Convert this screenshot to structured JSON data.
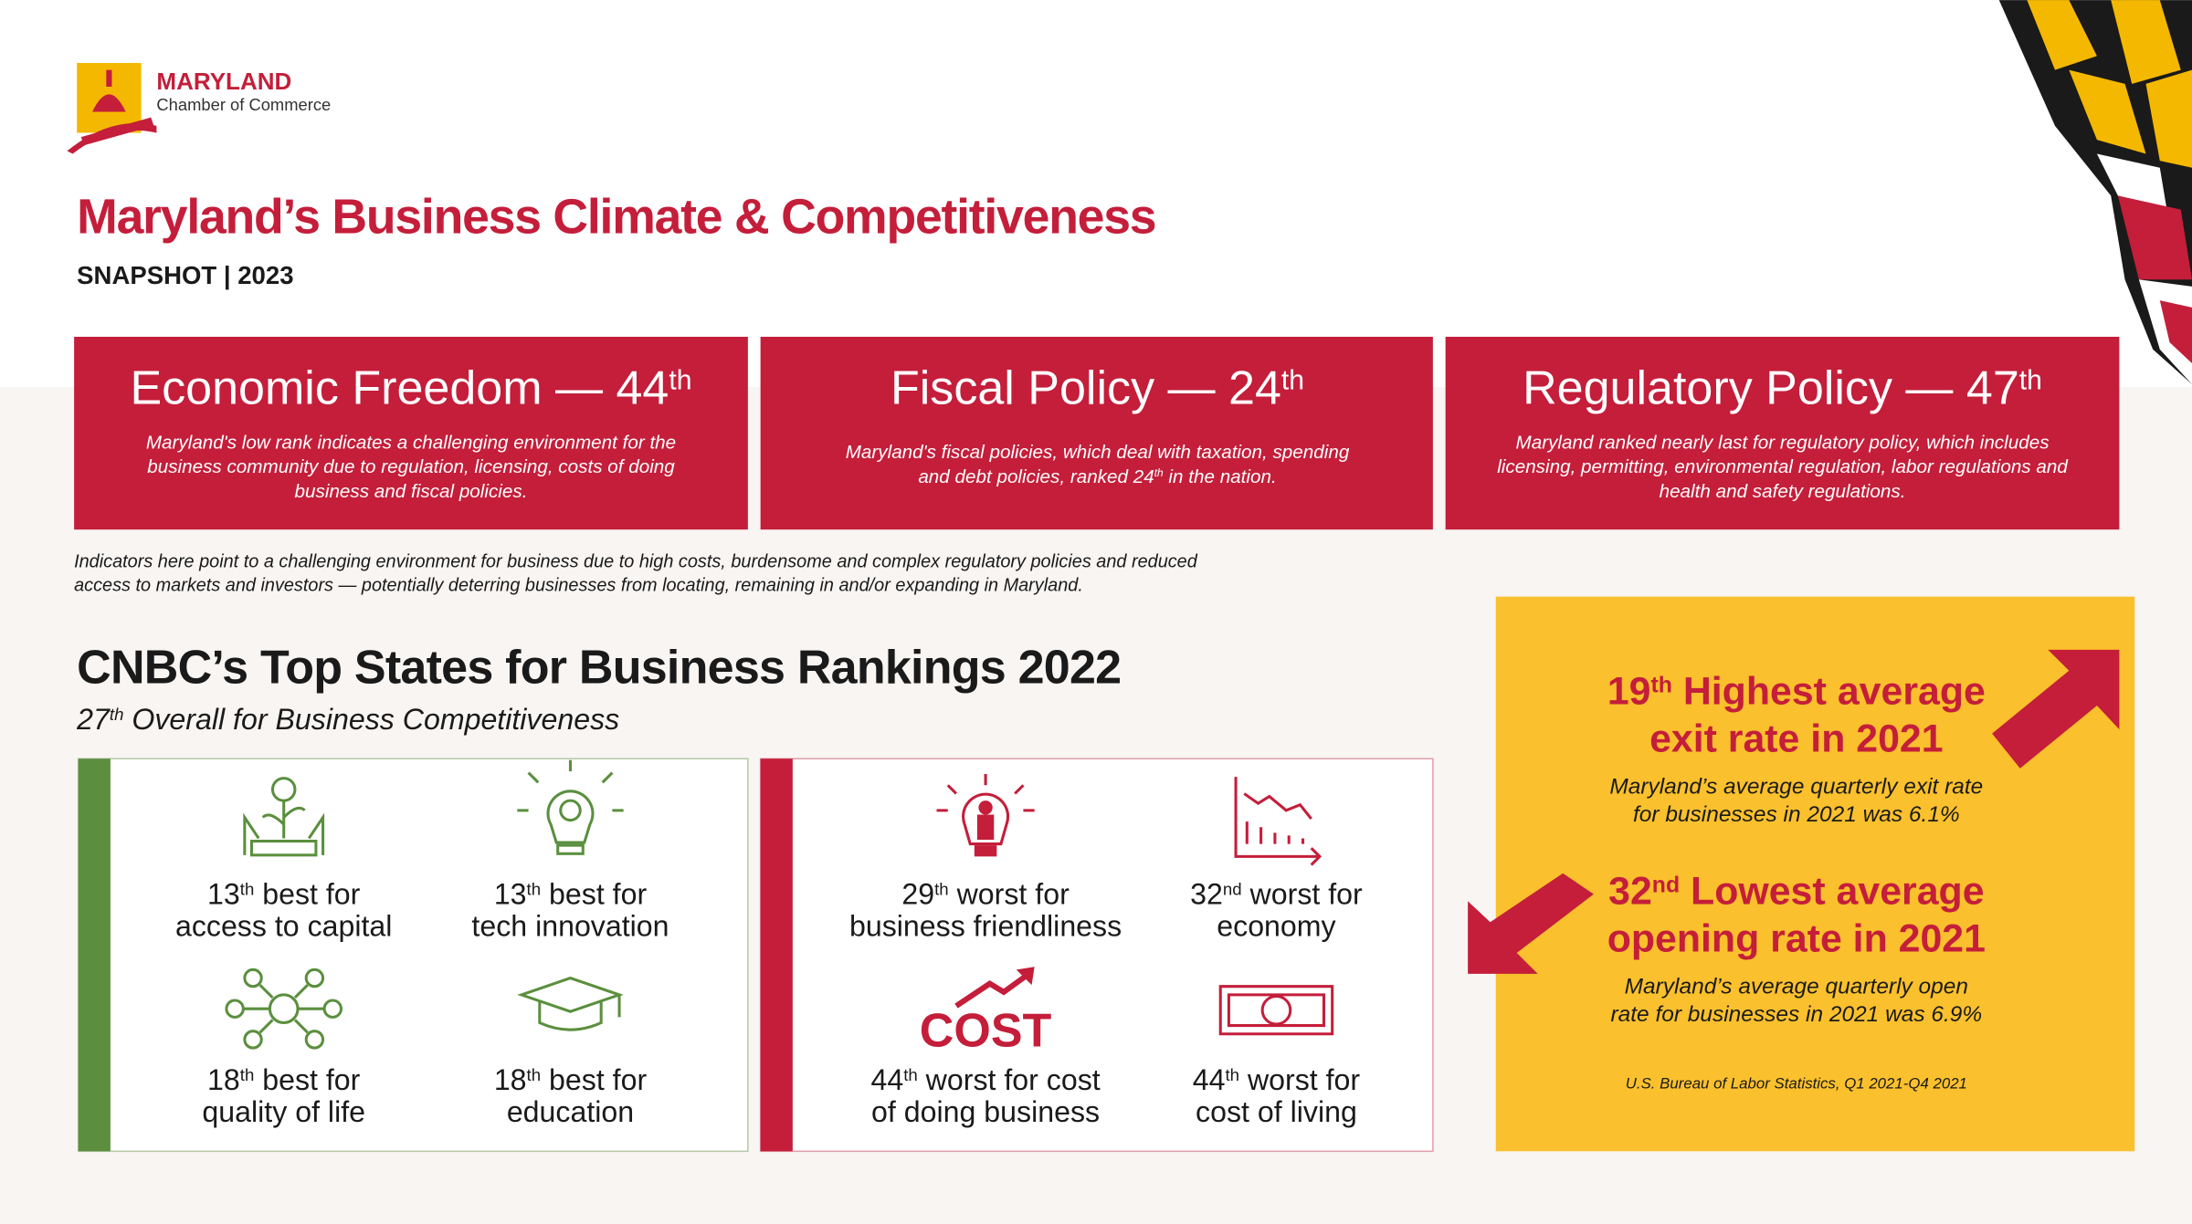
{
  "header": {
    "org_name": "MARYLAND",
    "org_sub": "Chamber of Commerce",
    "title": "Maryland’s Business Climate & Competitiveness",
    "subtitle": "SNAPSHOT | 2023"
  },
  "rank_cards": [
    {
      "title": [
        {
          "t": "Economic Freedom — 44"
        },
        {
          "sup": "th"
        }
      ],
      "description": [
        [
          {
            "t": "Maryland's low rank indicates a challenging environment for the"
          }
        ],
        [
          {
            "t": "business community due to regulation, licensing, costs of doing"
          }
        ],
        [
          {
            "t": "business and fiscal policies."
          }
        ]
      ]
    },
    {
      "title": [
        {
          "t": "Fiscal Policy — 24"
        },
        {
          "sup": "th"
        }
      ],
      "description": [
        [
          {
            "t": "Maryland's fiscal policies, which deal with taxation, spending"
          }
        ],
        [
          {
            "t": "and debt policies, ranked 24"
          },
          {
            "sup": "th"
          },
          {
            "t": " in the nation."
          }
        ]
      ]
    },
    {
      "title": [
        {
          "t": "Regulatory Policy — 47"
        },
        {
          "sup": "th"
        }
      ],
      "description": [
        [
          {
            "t": "Maryland ranked nearly last for regulatory policy, which includes"
          }
        ],
        [
          {
            "t": "licensing, permitting, environmental regulation, labor regulations and"
          }
        ],
        [
          {
            "t": "health and safety regulations."
          }
        ]
      ]
    }
  ],
  "indicators_note": [
    "Indicators here point to a challenging environment for business due to high costs, burdensome and complex regulatory policies and reduced",
    "access to markets and investors — potentially deterring businesses from locating, remaining in and/or expanding in Maryland."
  ],
  "cnbc": {
    "title": "CNBC’s Top States for Business Rankings 2022",
    "subtitle": [
      {
        "t": "27"
      },
      {
        "sup": "th"
      },
      {
        "t": " Overall for Business Competitiveness"
      }
    ],
    "strengths": [
      {
        "lines": [
          [
            {
              "t": "13"
            },
            {
              "sup": "th"
            },
            {
              "t": " best for"
            }
          ],
          [
            {
              "t": "access to capital"
            }
          ]
        ]
      },
      {
        "lines": [
          [
            {
              "t": "13"
            },
            {
              "sup": "th"
            },
            {
              "t": " best for"
            }
          ],
          [
            {
              "t": "tech innovation"
            }
          ]
        ]
      },
      {
        "lines": [
          [
            {
              "t": "18"
            },
            {
              "sup": "th"
            },
            {
              "t": " best for"
            }
          ],
          [
            {
              "t": "quality of life"
            }
          ]
        ]
      },
      {
        "lines": [
          [
            {
              "t": "18"
            },
            {
              "sup": "th"
            },
            {
              "t": " best for"
            }
          ],
          [
            {
              "t": "education"
            }
          ]
        ]
      }
    ],
    "weaknesses": [
      {
        "lines": [
          [
            {
              "t": "29"
            },
            {
              "sup": "th"
            },
            {
              "t": " worst for"
            }
          ],
          [
            {
              "t": "business friendliness"
            }
          ]
        ]
      },
      {
        "lines": [
          [
            {
              "t": "32"
            },
            {
              "sup": "nd"
            },
            {
              "t": " worst for"
            }
          ],
          [
            {
              "t": "economy"
            }
          ]
        ]
      },
      {
        "icon_text": "COST",
        "lines": [
          [
            {
              "t": "44"
            },
            {
              "sup": "th"
            },
            {
              "t": " worst for cost"
            }
          ],
          [
            {
              "t": "of doing business"
            }
          ]
        ]
      },
      {
        "lines": [
          [
            {
              "t": "44"
            },
            {
              "sup": "th"
            },
            {
              "t": " worst for"
            }
          ],
          [
            {
              "t": "cost of living"
            }
          ]
        ]
      }
    ]
  },
  "exit_stats": [
    {
      "headline": [
        [
          {
            "t": "19"
          },
          {
            "sup": "th"
          },
          {
            "t": " Highest average"
          }
        ],
        [
          {
            "t": "exit rate in 2021"
          }
        ]
      ],
      "detail": [
        "Maryland’s average quarterly exit rate",
        "for businesses in 2021 was 6.1%"
      ]
    },
    {
      "headline": [
        [
          {
            "t": "32"
          },
          {
            "sup": "nd"
          },
          {
            "t": " Lowest average"
          }
        ],
        [
          {
            "t": "opening rate in 2021"
          }
        ]
      ],
      "detail": [
        "Maryland’s average quarterly open",
        "rate for businesses in 2021 was 6.9%"
      ]
    }
  ],
  "source": "U.S. Bureau of Labor Statistics, Q1 2021-Q4 2021"
}
